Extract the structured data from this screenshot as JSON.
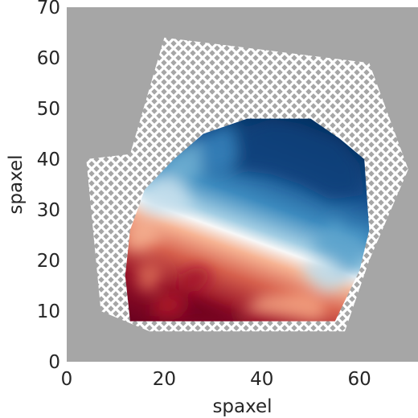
{
  "chart_data": {
    "type": "heatmap",
    "title": "",
    "xlabel": "spaxel",
    "ylabel": "spaxel",
    "xlim": [
      0,
      72
    ],
    "ylim": [
      0,
      70
    ],
    "xticks": [
      0,
      20,
      40,
      60
    ],
    "yticks": [
      0,
      10,
      20,
      30,
      40,
      50,
      60,
      70
    ],
    "grid": false,
    "colormap": "RdBu_r",
    "background_color": "#a6a6a6",
    "masked_region": {
      "pattern": "crosshatch",
      "shape": "hexagon",
      "polygon": [
        [
          17,
          6
        ],
        [
          57,
          6
        ],
        [
          62,
          20
        ],
        [
          70,
          38
        ],
        [
          62,
          59
        ],
        [
          20,
          64
        ],
        [
          13,
          41
        ],
        [
          4,
          40
        ],
        [
          7,
          10
        ]
      ]
    },
    "valid_region": {
      "polygon": [
        [
          13,
          8
        ],
        [
          55,
          8
        ],
        [
          60,
          18
        ],
        [
          62,
          26
        ],
        [
          61,
          40
        ],
        [
          56,
          44
        ],
        [
          50,
          48
        ],
        [
          37,
          48
        ],
        [
          28,
          45
        ],
        [
          22,
          40
        ],
        [
          16,
          34
        ],
        [
          13,
          26
        ],
        [
          12,
          17
        ]
      ]
    },
    "velocity_field": {
      "value_range": [
        -1,
        1
      ],
      "gradient_direction_deg": -33,
      "gradient_center": [
        38,
        24
      ],
      "peak_redshifted": [
        29,
        11
      ],
      "peak_blueshifted": [
        46,
        37
      ]
    },
    "patches": [
      {
        "polygon": [
          [
            34,
            38
          ],
          [
            36,
            46
          ],
          [
            42,
            48
          ],
          [
            48,
            47
          ],
          [
            56,
            44
          ],
          [
            60,
            39
          ],
          [
            61,
            33
          ],
          [
            54,
            32
          ],
          [
            48,
            35
          ],
          [
            42,
            37
          ]
        ],
        "value": -0.92
      },
      {
        "polygon": [
          [
            27,
            44
          ],
          [
            34,
            47
          ],
          [
            35,
            40
          ],
          [
            31,
            37
          ],
          [
            27,
            40
          ]
        ],
        "value": -0.6
      },
      {
        "polygon": [
          [
            20,
            40
          ],
          [
            27,
            44
          ],
          [
            28,
            37
          ],
          [
            24,
            35
          ],
          [
            20,
            37
          ]
        ],
        "value": -0.35
      },
      {
        "polygon": [
          [
            16,
            34
          ],
          [
            20,
            37
          ],
          [
            24,
            35
          ],
          [
            26,
            30
          ],
          [
            18,
            29
          ],
          [
            15,
            30
          ]
        ],
        "value": -0.08
      },
      {
        "polygon": [
          [
            12,
            26
          ],
          [
            16,
            29
          ],
          [
            20,
            25
          ],
          [
            16,
            22
          ],
          [
            12,
            22
          ]
        ],
        "value": 0.2
      },
      {
        "polygon": [
          [
            14,
            18
          ],
          [
            17,
            20
          ],
          [
            20,
            18
          ],
          [
            18,
            14
          ],
          [
            15,
            14
          ]
        ],
        "value": 0.45
      },
      {
        "polygon": [
          [
            23,
            17
          ],
          [
            27,
            19
          ],
          [
            30,
            17
          ],
          [
            27,
            14
          ],
          [
            23,
            14
          ]
        ],
        "value": 0.8
      },
      {
        "polygon": [
          [
            22,
            14
          ],
          [
            27,
            12
          ],
          [
            32,
            10
          ],
          [
            37,
            8
          ],
          [
            34,
            7
          ],
          [
            26,
            8
          ],
          [
            21,
            9
          ]
        ],
        "value": 0.98
      },
      {
        "polygon": [
          [
            18,
            12
          ],
          [
            22,
            14
          ],
          [
            25,
            11
          ],
          [
            22,
            9
          ],
          [
            18,
            9
          ]
        ],
        "value": 0.75
      },
      {
        "polygon": [
          [
            36,
            10
          ],
          [
            44,
            9
          ],
          [
            51,
            8
          ],
          [
            53,
            9
          ],
          [
            53,
            12
          ],
          [
            49,
            14
          ],
          [
            40,
            13
          ]
        ],
        "value": 0.25
      },
      {
        "polygon": [
          [
            50,
            23
          ],
          [
            55,
            28
          ],
          [
            58,
            25
          ],
          [
            61,
            26
          ],
          [
            60,
            18
          ],
          [
            57,
            17
          ],
          [
            54,
            20
          ]
        ],
        "value": -0.42
      },
      {
        "polygon": [
          [
            48,
            18
          ],
          [
            52,
            14
          ],
          [
            56,
            14
          ],
          [
            58,
            17
          ],
          [
            54,
            20
          ],
          [
            50,
            20
          ]
        ],
        "value": -0.12
      }
    ]
  },
  "colors": {
    "figure_background": "#ffffff",
    "axes_background": "#a6a6a6",
    "hatch": "#ffffff",
    "text": "#262626"
  }
}
